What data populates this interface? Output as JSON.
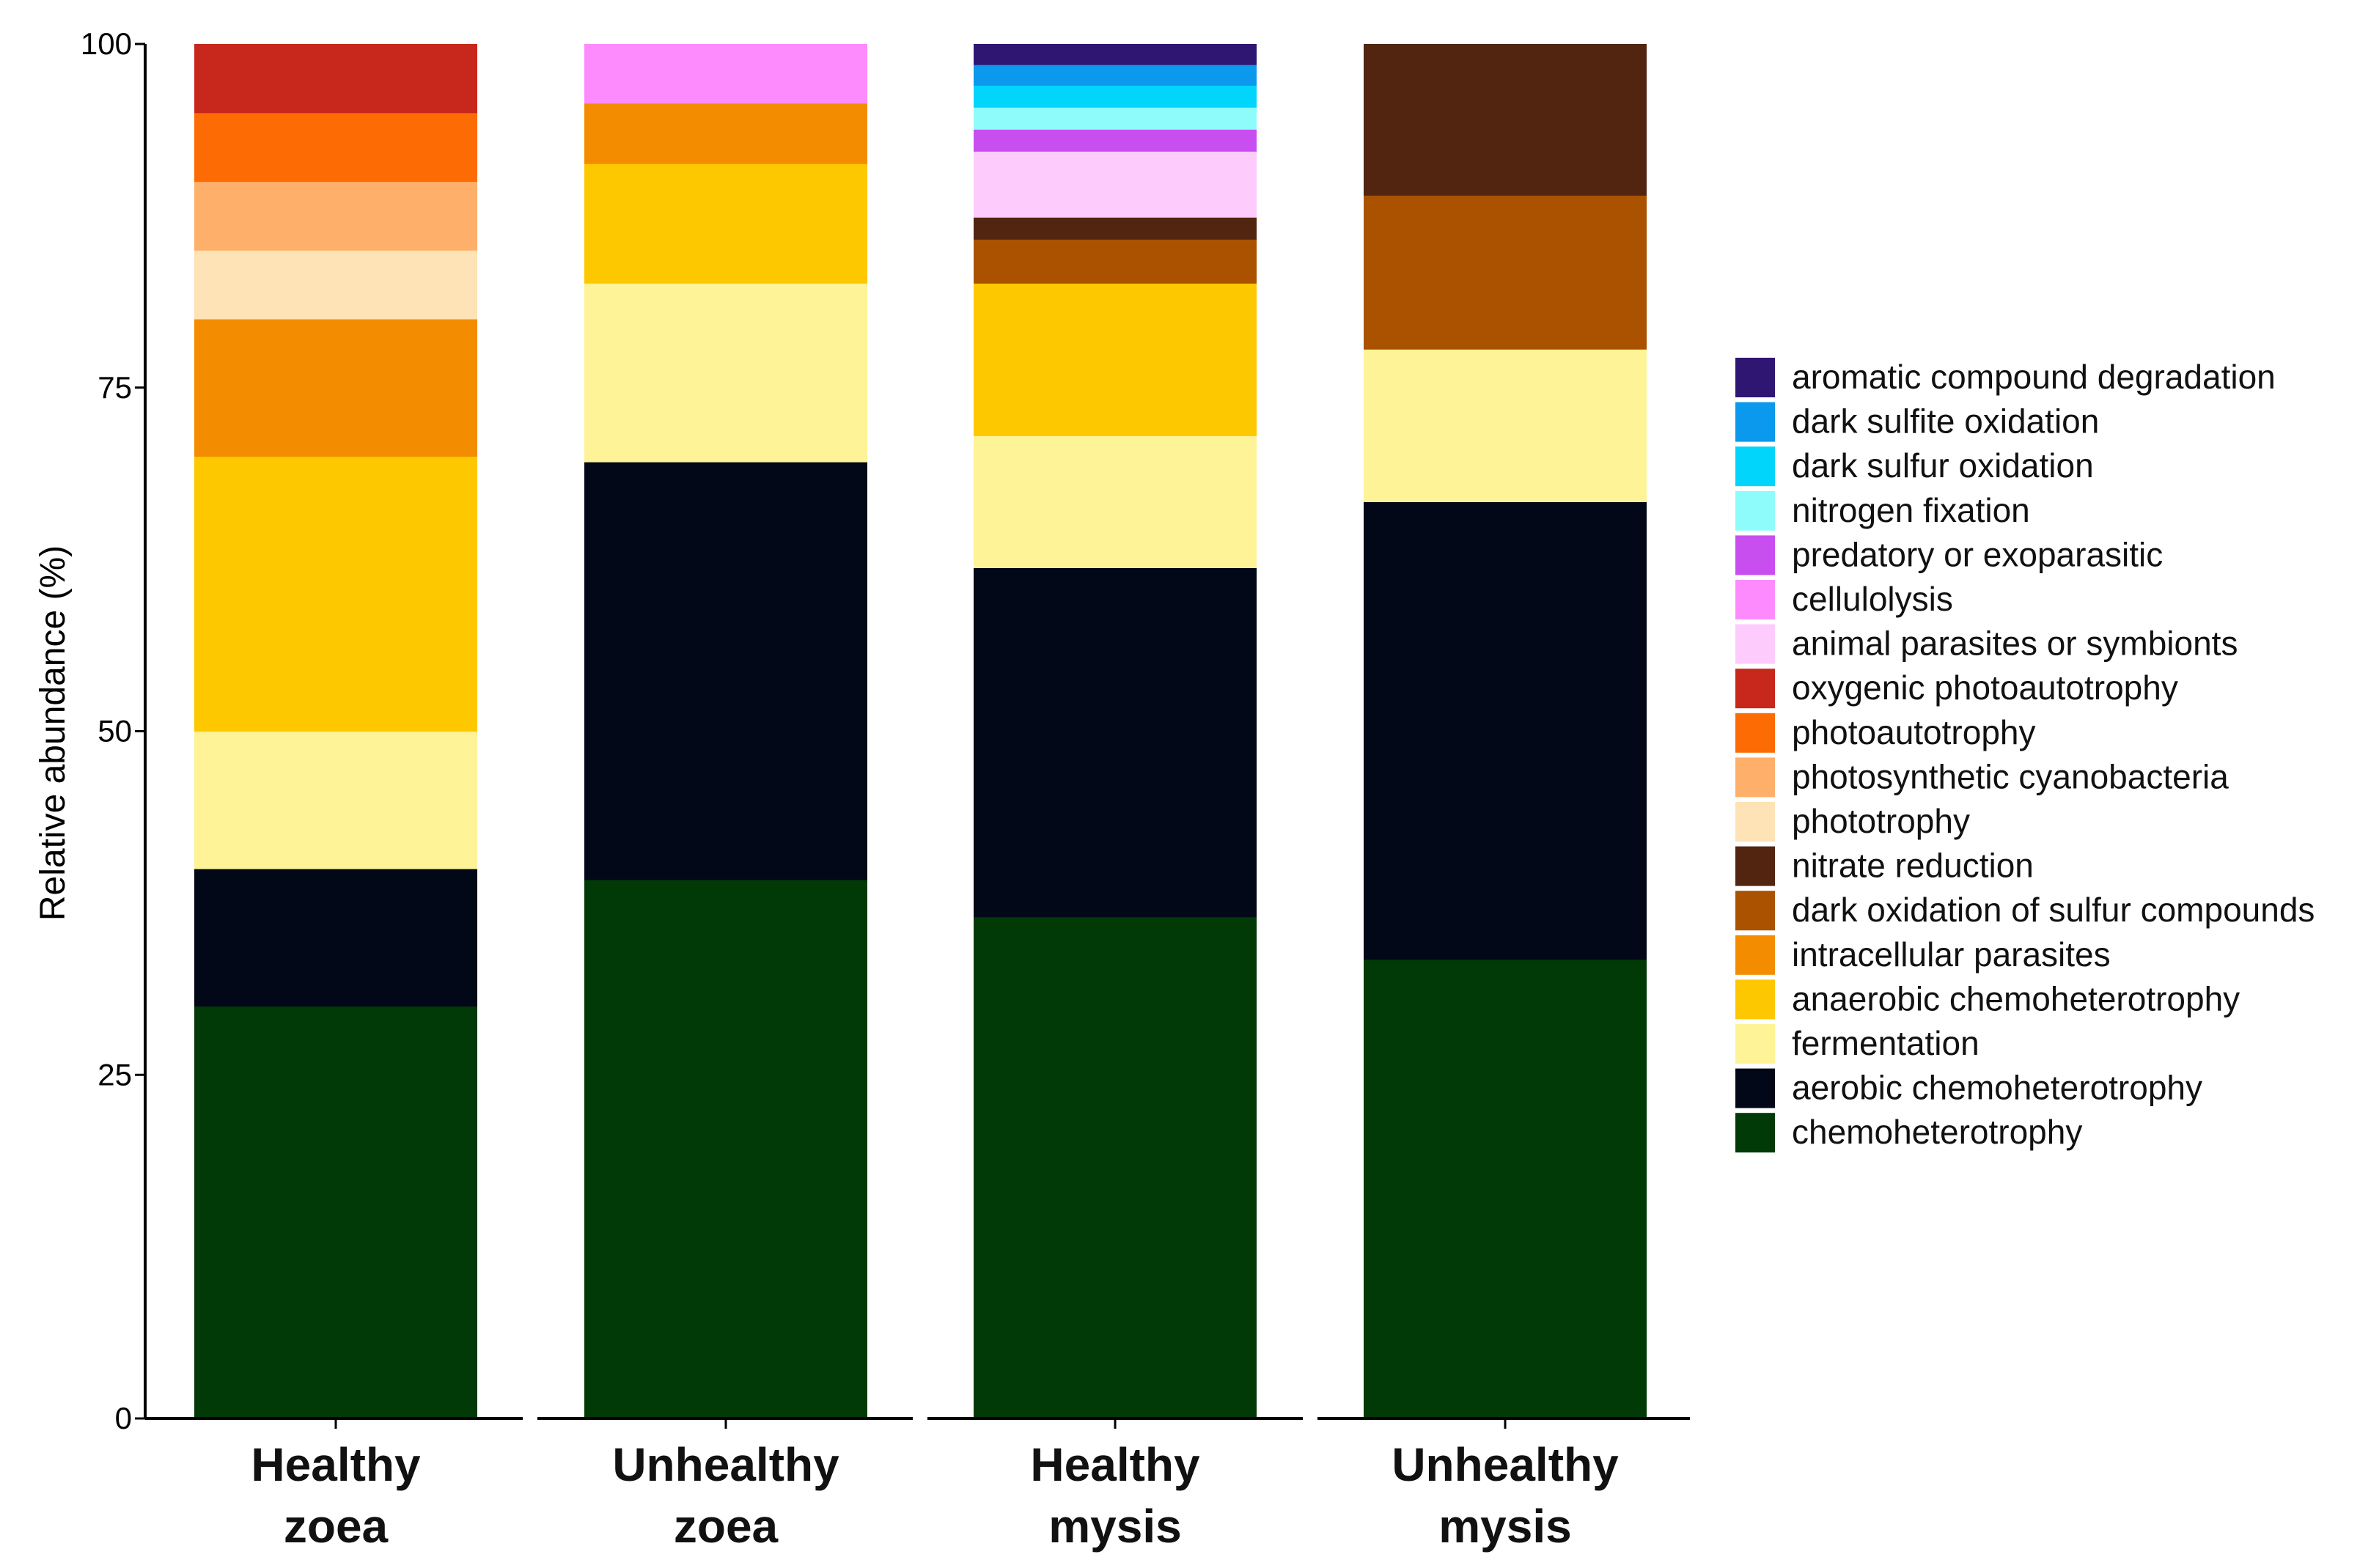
{
  "chart_data": {
    "type": "bar",
    "stacked": true,
    "title": "",
    "xlabel": "",
    "ylabel": "Relative abundance (%)",
    "ylim": [
      0,
      100
    ],
    "yticks": [
      0,
      25,
      50,
      75,
      100
    ],
    "legend_position": "right",
    "categories": [
      [
        "Healthy",
        "zoea"
      ],
      [
        "Unhealthy",
        "zoea"
      ],
      [
        "Healthy",
        "mysis"
      ],
      [
        "Unhealthy",
        "mysis"
      ]
    ],
    "legend_order": [
      "aromatic compound degradation",
      "dark sulfite oxidation",
      "dark sulfur oxidation",
      "nitrogen fixation",
      "predatory or exoparasitic",
      "cellulolysis",
      "animal parasites or symbionts",
      "oxygenic photoautotrophy",
      "photoautotrophy",
      "photosynthetic cyanobacteria",
      "phototrophy",
      "nitrate reduction",
      "dark oxidation of sulfur compounds",
      "intracellular parasites",
      "anaerobic chemoheterotrophy",
      "fermentation",
      "aerobic chemoheterotrophy",
      "chemoheterotrophy"
    ],
    "series": [
      {
        "name": "chemoheterotrophy",
        "color": "#013a06",
        "values": [
          30,
          39.2,
          36.5,
          33.4
        ]
      },
      {
        "name": "aerobic chemoheterotrophy",
        "color": "#020817",
        "values": [
          10,
          30.4,
          25.4,
          33.3
        ]
      },
      {
        "name": "fermentation",
        "color": "#fef497",
        "values": [
          10,
          13.0,
          9.6,
          11.1
        ]
      },
      {
        "name": "anaerobic chemoheterotrophy",
        "color": "#fec800",
        "values": [
          20,
          8.7,
          11.1,
          0
        ]
      },
      {
        "name": "intracellular parasites",
        "color": "#f48c00",
        "values": [
          10,
          4.4,
          0,
          0
        ]
      },
      {
        "name": "dark oxidation of sulfur compounds",
        "color": "#aa5200",
        "values": [
          0,
          0,
          3.2,
          11.2
        ]
      },
      {
        "name": "nitrate reduction",
        "color": "#51250f",
        "values": [
          0,
          0,
          1.6,
          11.0
        ]
      },
      {
        "name": "phototrophy",
        "color": "#fde3b5",
        "values": [
          5,
          0,
          0,
          0
        ]
      },
      {
        "name": "photosynthetic cyanobacteria",
        "color": "#feaf6a",
        "values": [
          5,
          0,
          0,
          0
        ]
      },
      {
        "name": "photoautotrophy",
        "color": "#fd6b05",
        "values": [
          5,
          0,
          0,
          0
        ]
      },
      {
        "name": "oxygenic photoautotrophy",
        "color": "#c7281b",
        "values": [
          5,
          0,
          0,
          0
        ]
      },
      {
        "name": "animal parasites or symbionts",
        "color": "#fecbfd",
        "values": [
          0,
          0,
          4.8,
          0
        ]
      },
      {
        "name": "cellulolysis",
        "color": "#fe8bfe",
        "values": [
          0,
          4.3,
          0,
          0
        ]
      },
      {
        "name": "predatory or exoparasitic",
        "color": "#c94ef0",
        "values": [
          0,
          0,
          1.6,
          0
        ]
      },
      {
        "name": "nitrogen fixation",
        "color": "#8ffcfc",
        "values": [
          0,
          0,
          1.6,
          0
        ]
      },
      {
        "name": "dark sulfur oxidation",
        "color": "#02d5fc",
        "values": [
          0,
          0,
          1.6,
          0
        ]
      },
      {
        "name": "dark sulfite oxidation",
        "color": "#0a99ec",
        "values": [
          0,
          0,
          1.5,
          0
        ]
      },
      {
        "name": "aromatic compound degradation",
        "color": "#2f1673",
        "values": [
          0,
          0,
          1.5,
          0
        ]
      }
    ]
  }
}
